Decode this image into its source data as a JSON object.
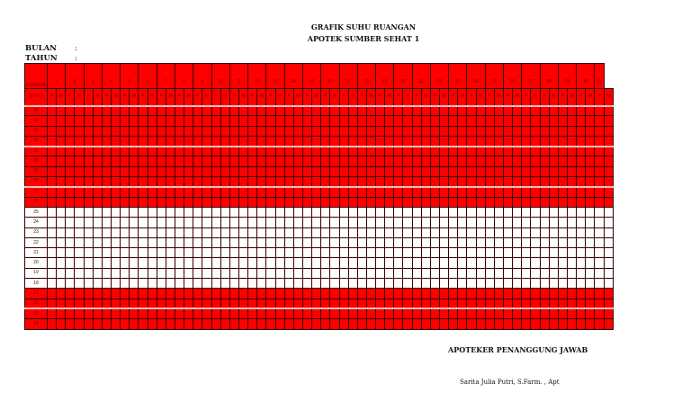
{
  "header": {
    "title": "GRAFIK SUHU RUANGAN",
    "subtitle": "APOTEK SUMBER SEHAT 1"
  },
  "meta": {
    "month_label": "BULAN",
    "year_label": "TAHUN",
    "separator": ":"
  },
  "table": {
    "date_header": "TANGGAL",
    "temp_header": "SUHU",
    "days": [
      "1",
      "2",
      "3",
      "4",
      "5",
      "6",
      "7",
      "8",
      "9",
      "10",
      "11",
      "12",
      "13",
      "14",
      "15",
      "16",
      "17",
      "18",
      "19",
      "20",
      "21",
      "22",
      "23",
      "24",
      "25",
      "26",
      "27",
      "28",
      "29",
      "30",
      "31"
    ],
    "sub_columns": [
      "P",
      "M"
    ],
    "temperatures": [
      "35",
      "34",
      "33",
      "32",
      "31",
      "30",
      "29",
      "28",
      "27",
      "26",
      "25",
      "24",
      "23",
      "22",
      "21",
      "20",
      "19",
      "18",
      "17",
      "16",
      "15",
      "14"
    ],
    "normal_range": [
      "25",
      "18"
    ],
    "out_of_range_color": "#ff0000",
    "normal_color": "#ffffff"
  },
  "footer": {
    "signatory_title": "APOTEKER PENANGGUNG JAWAB",
    "signatory_name": "Sarita Julia Putri, S.Farm. , Apt"
  }
}
